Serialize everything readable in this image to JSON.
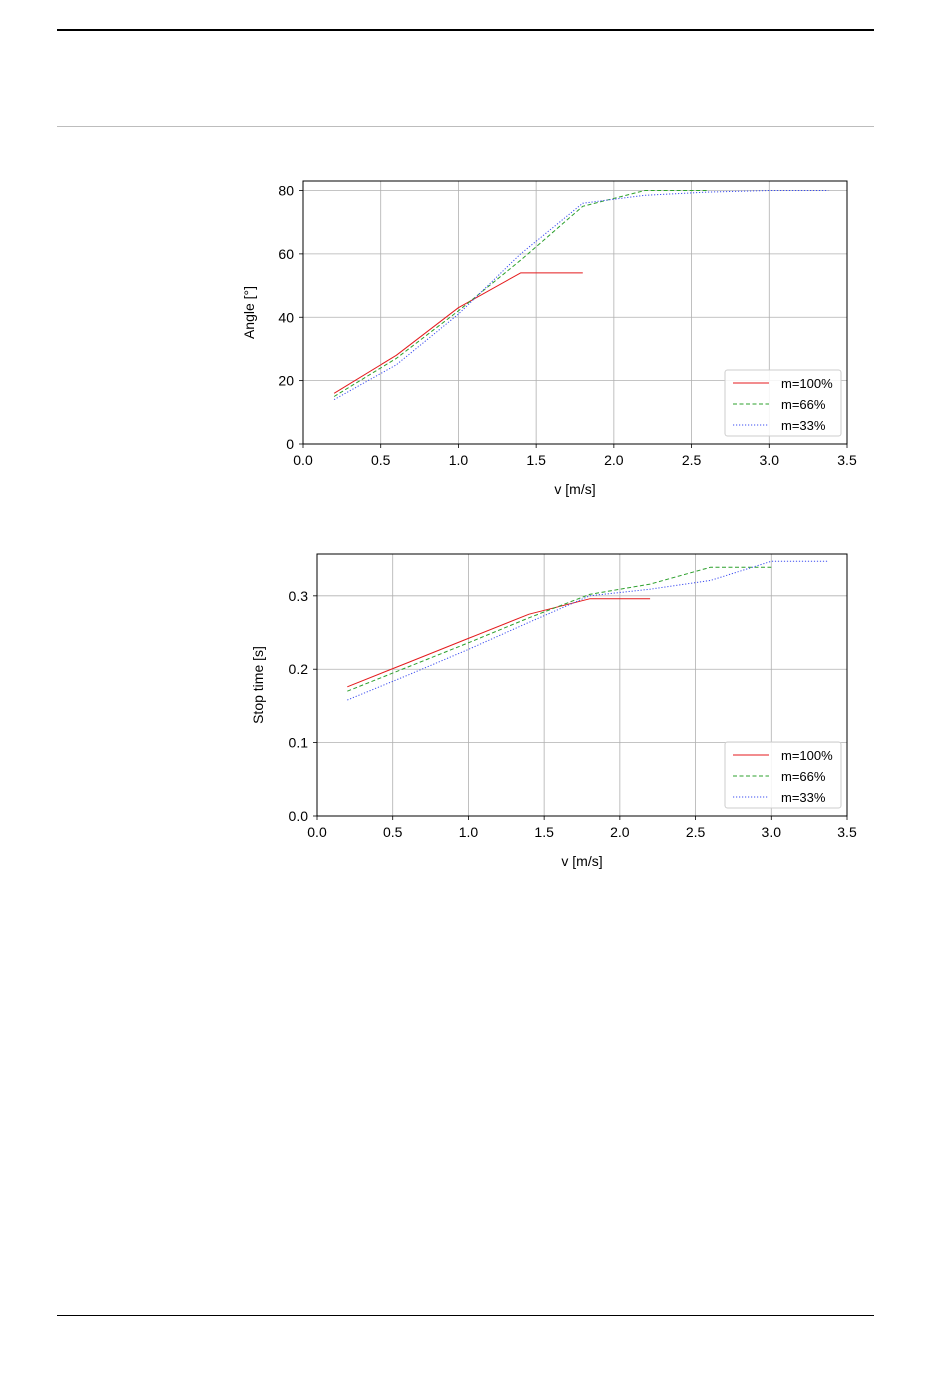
{
  "chart_data": [
    {
      "type": "line",
      "xlabel": "v [m/s]",
      "ylabel": "Angle [°]",
      "xlim": [
        0.0,
        3.5
      ],
      "ylim": [
        0,
        83
      ],
      "xticks": [
        "0.0",
        "0.5",
        "1.0",
        "1.5",
        "2.0",
        "2.5",
        "3.0",
        "3.5"
      ],
      "yticks": [
        "0",
        "20",
        "40",
        "60",
        "80"
      ],
      "grid": true,
      "legend_position": "bottom-right",
      "series": [
        {
          "name": "m=100%",
          "color": "#e41a1c",
          "dash": "solid",
          "x": [
            0.2,
            0.6,
            1.0,
            1.4,
            1.8
          ],
          "y": [
            16,
            28,
            43,
            54,
            54
          ]
        },
        {
          "name": "m=66%",
          "color": "#2ca02c",
          "dash": "dashed",
          "x": [
            0.2,
            0.6,
            1.0,
            1.4,
            1.8,
            2.2,
            2.6
          ],
          "y": [
            15,
            27,
            42,
            58,
            75,
            80,
            80
          ]
        },
        {
          "name": "m=33%",
          "color": "#3b4cf0",
          "dash": "dotted",
          "x": [
            0.2,
            0.6,
            1.0,
            1.4,
            1.8,
            2.2,
            2.6,
            3.0,
            3.38
          ],
          "y": [
            14,
            25,
            41,
            60,
            76,
            78.5,
            79.5,
            80,
            80
          ]
        }
      ]
    },
    {
      "type": "line",
      "xlabel": "v [m/s]",
      "ylabel": "Stop time [s]",
      "xlim": [
        0.0,
        3.5
      ],
      "ylim": [
        0.0,
        0.357
      ],
      "xticks": [
        "0.0",
        "0.5",
        "1.0",
        "1.5",
        "2.0",
        "2.5",
        "3.0",
        "3.5"
      ],
      "yticks": [
        "0.0",
        "0.1",
        "0.2",
        "0.3"
      ],
      "grid": true,
      "legend_position": "bottom-right",
      "series": [
        {
          "name": "m=100%",
          "color": "#e41a1c",
          "dash": "solid",
          "x": [
            0.2,
            0.6,
            1.0,
            1.4,
            1.8,
            2.2
          ],
          "y": [
            0.176,
            0.209,
            0.242,
            0.275,
            0.296,
            0.296
          ]
        },
        {
          "name": "m=66%",
          "color": "#2ca02c",
          "dash": "dashed",
          "x": [
            0.2,
            0.6,
            1.0,
            1.4,
            1.8,
            2.2,
            2.6,
            3.0
          ],
          "y": [
            0.17,
            0.203,
            0.236,
            0.27,
            0.302,
            0.316,
            0.339,
            0.339
          ]
        },
        {
          "name": "m=33%",
          "color": "#3b4cf0",
          "dash": "dotted",
          "x": [
            0.2,
            0.6,
            1.0,
            1.4,
            1.8,
            2.2,
            2.6,
            3.0,
            3.38
          ],
          "y": [
            0.158,
            0.192,
            0.227,
            0.264,
            0.3,
            0.309,
            0.321,
            0.347,
            0.347
          ]
        }
      ]
    }
  ]
}
